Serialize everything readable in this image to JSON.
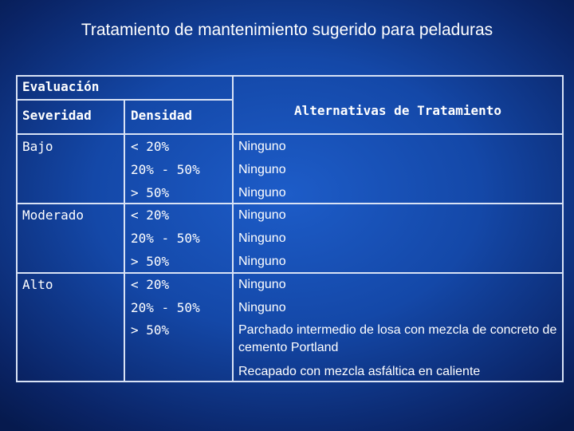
{
  "title": "Tratamiento de mantenimiento sugerido para peladuras",
  "table": {
    "header": {
      "group": "Evaluación",
      "columns": [
        "Severidad",
        "Densidad"
      ],
      "alternatives": "Alternativas de Tratamiento"
    },
    "groups": [
      {
        "severity": "Bajo",
        "rows": [
          {
            "density": "< 20%",
            "treatments": [
              "Ninguno"
            ]
          },
          {
            "density": "20% - 50%",
            "treatments": [
              "Ninguno"
            ]
          },
          {
            "density": "> 50%",
            "treatments": [
              "Ninguno"
            ]
          }
        ]
      },
      {
        "severity": "Moderado",
        "rows": [
          {
            "density": "< 20%",
            "treatments": [
              "Ninguno"
            ]
          },
          {
            "density": "20% - 50%",
            "treatments": [
              "Ninguno"
            ]
          },
          {
            "density": "> 50%",
            "treatments": [
              "Ninguno"
            ]
          }
        ]
      },
      {
        "severity": "Alto",
        "rows": [
          {
            "density": "< 20%",
            "treatments": [
              "Ninguno"
            ]
          },
          {
            "density": "20% - 50%",
            "treatments": [
              "Ninguno"
            ]
          },
          {
            "density": "> 50%",
            "treatments": [
              "Parchado intermedio de losa con mezcla de concreto de cemento Portland",
              "Recapado con mezcla asfáltica en caliente"
            ]
          }
        ]
      }
    ]
  }
}
